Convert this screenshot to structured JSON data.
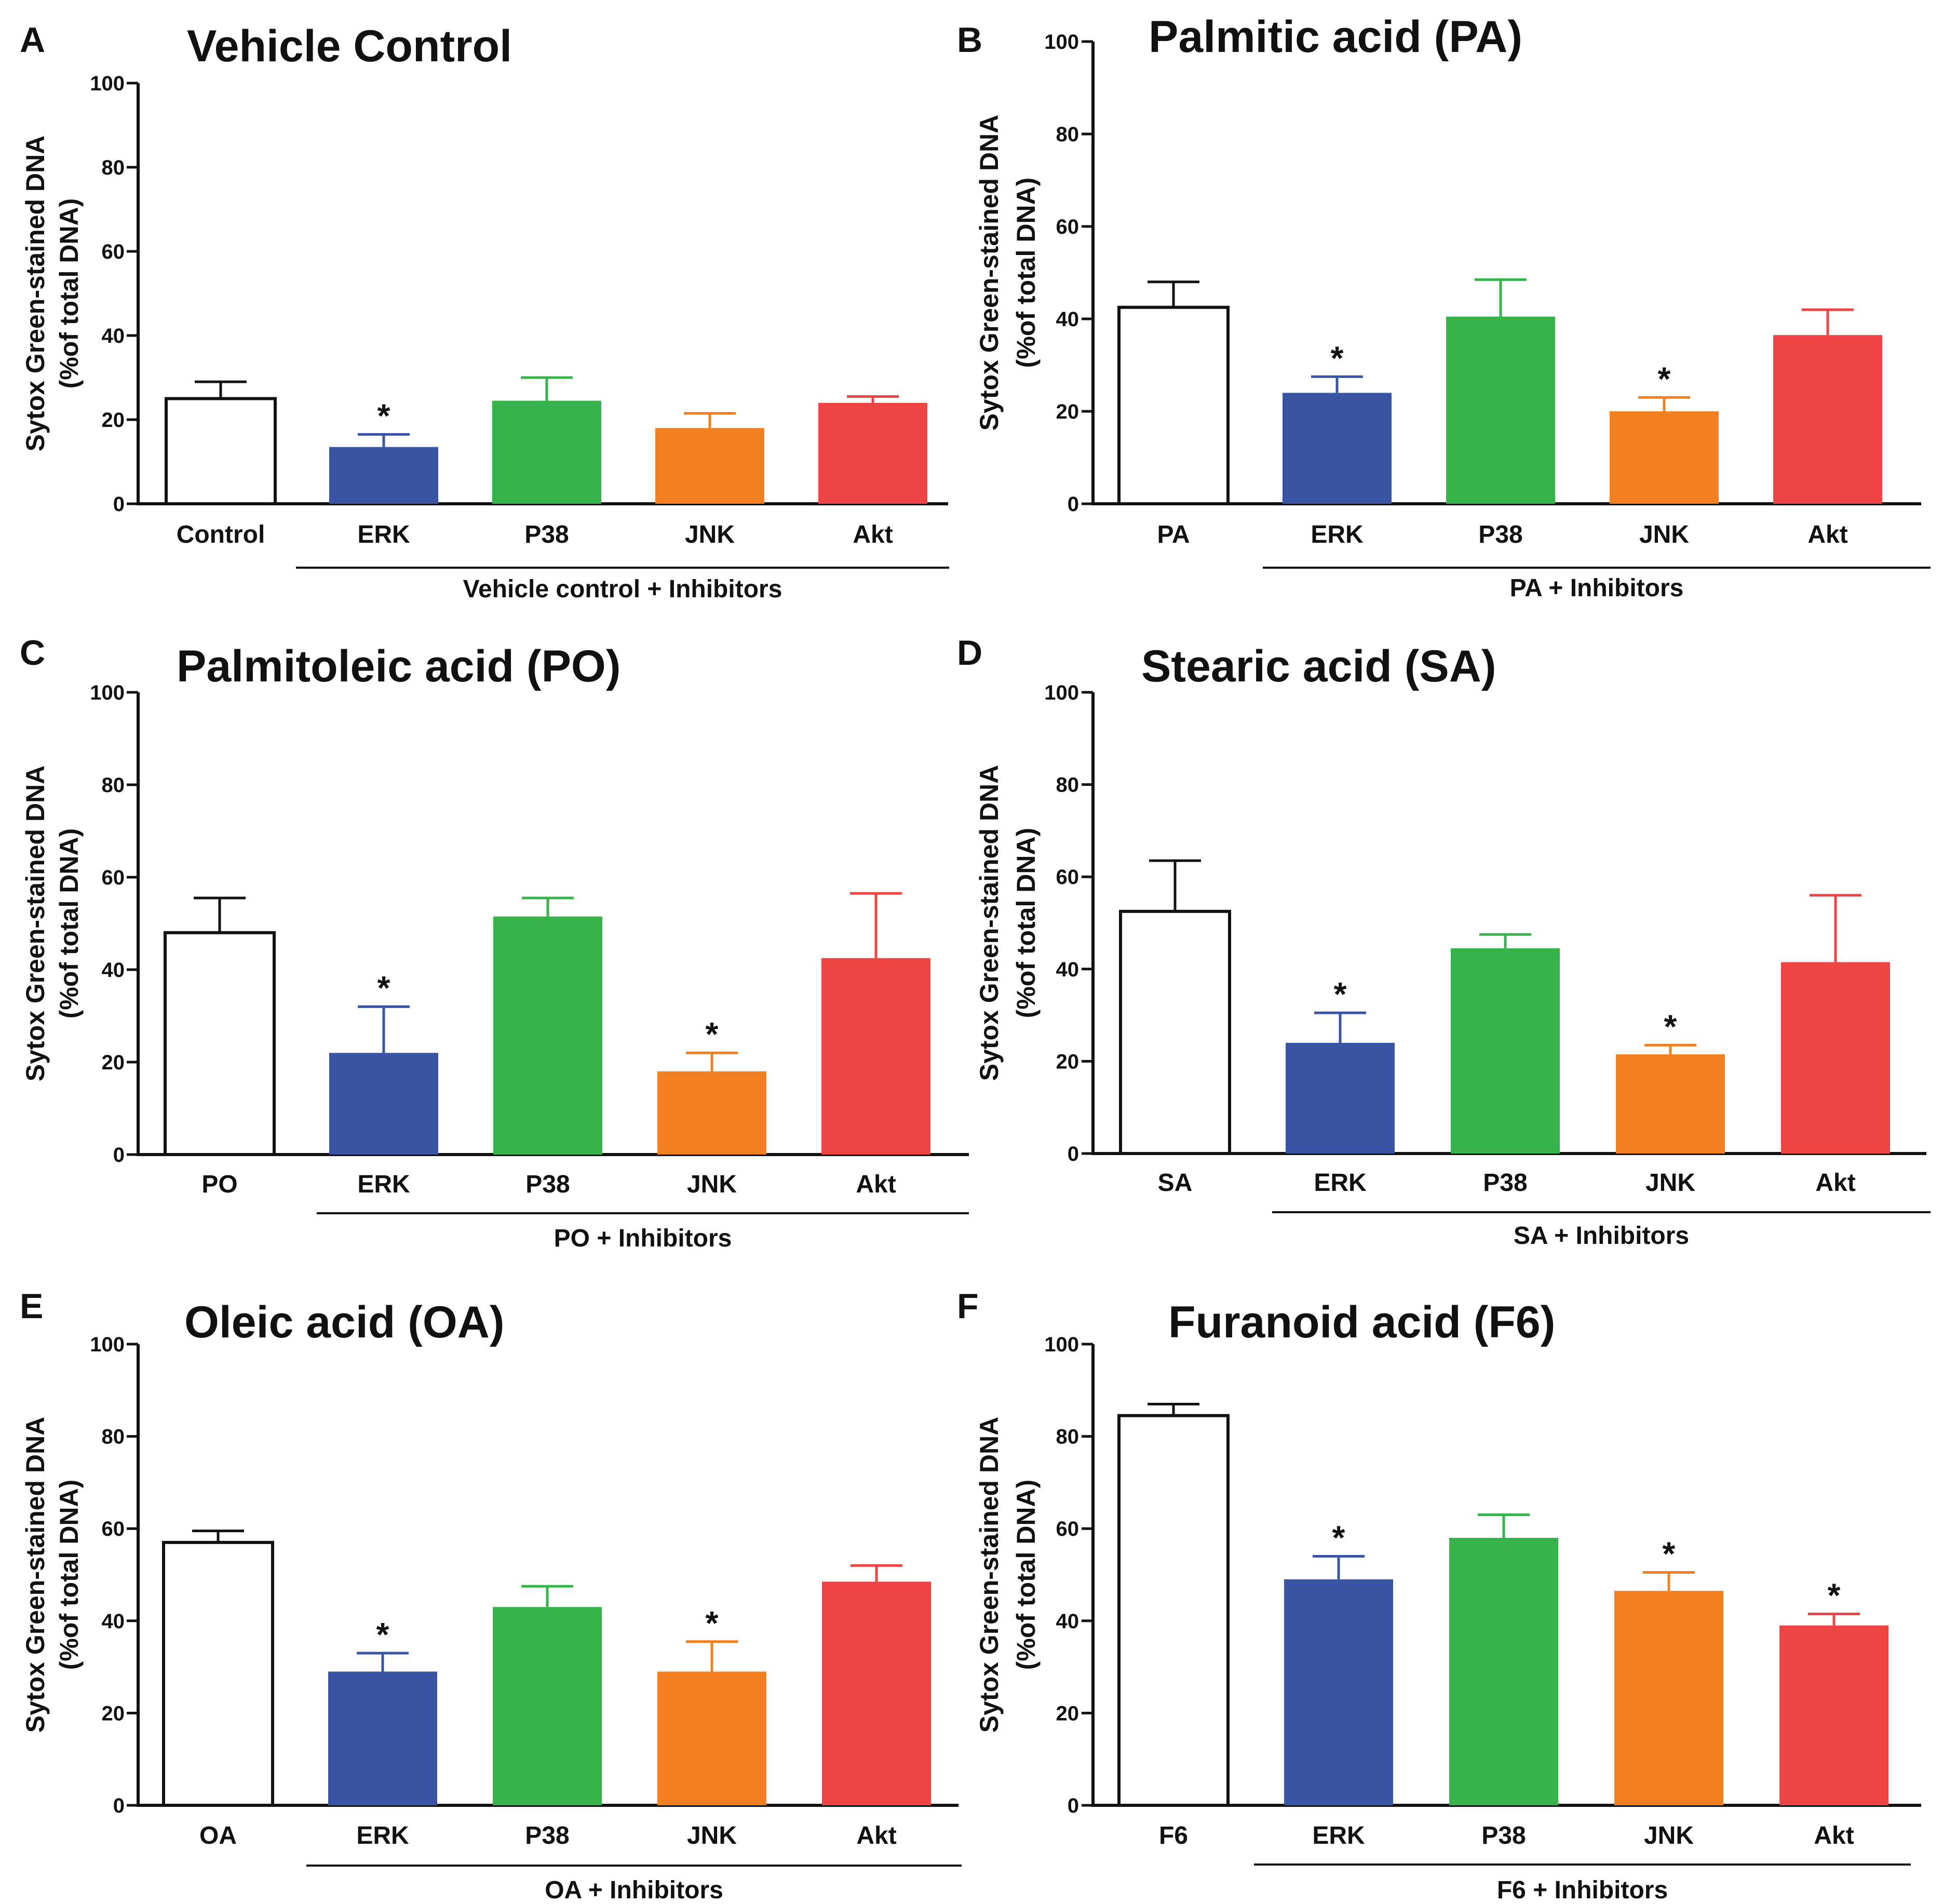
{
  "colors": {
    "control": "#ffffff",
    "ERK": "#3a54a4",
    "P38": "#36b34a",
    "JNK": "#f38020",
    "Akt": "#ef4444",
    "axis": "#111111"
  },
  "chart_data": [
    {
      "panel": "A",
      "type": "bar",
      "title": "Vehicle Control",
      "ylabel_line1": "Sytox Green-stained DNA",
      "ylabel_line2": "(%of total DNA)",
      "ylim": [
        0,
        100
      ],
      "yticks": [
        0,
        20,
        40,
        60,
        80,
        100
      ],
      "categories": [
        "Control",
        "ERK",
        "P38",
        "JNK",
        "Akt"
      ],
      "values": [
        25,
        13.5,
        24.5,
        18,
        24
      ],
      "errors": [
        4,
        3,
        5.5,
        3.5,
        1.5
      ],
      "significant": [
        false,
        true,
        false,
        false,
        false
      ],
      "group_label": "Vehicle control + Inhibitors",
      "sig_symbol": "*"
    },
    {
      "panel": "B",
      "type": "bar",
      "title": "Palmitic acid (PA)",
      "ylabel_line1": "Sytox Green-stained DNA",
      "ylabel_line2": "(%of total DNA)",
      "ylim": [
        0,
        100
      ],
      "yticks": [
        0,
        20,
        40,
        60,
        80,
        100
      ],
      "categories": [
        "PA",
        "ERK",
        "P38",
        "JNK",
        "Akt"
      ],
      "values": [
        42.5,
        24,
        40.5,
        20,
        36.5
      ],
      "errors": [
        5.5,
        3.5,
        8,
        3,
        5.5
      ],
      "significant": [
        false,
        true,
        false,
        true,
        false
      ],
      "group_label": "PA + Inhibitors",
      "sig_symbol": "*"
    },
    {
      "panel": "C",
      "type": "bar",
      "title": "Palmitoleic acid (PO)",
      "ylabel_line1": "Sytox Green-stained DNA",
      "ylabel_line2": "(%of total DNA)",
      "ylim": [
        0,
        100
      ],
      "yticks": [
        0,
        20,
        40,
        60,
        80,
        100
      ],
      "categories": [
        "PO",
        "ERK",
        "P38",
        "JNK",
        "Akt"
      ],
      "values": [
        48,
        22,
        51.5,
        18,
        42.5
      ],
      "errors": [
        7.5,
        10,
        4,
        4,
        14
      ],
      "significant": [
        false,
        true,
        false,
        true,
        false
      ],
      "group_label": "PO + Inhibitors",
      "sig_symbol": "*"
    },
    {
      "panel": "D",
      "type": "bar",
      "title": "Stearic acid (SA)",
      "ylabel_line1": "Sytox Green-stained DNA",
      "ylabel_line2": "(%of total DNA)",
      "ylim": [
        0,
        100
      ],
      "yticks": [
        0,
        20,
        40,
        60,
        80,
        100
      ],
      "categories": [
        "SA",
        "ERK",
        "P38",
        "JNK",
        "Akt"
      ],
      "values": [
        52.5,
        24,
        44.5,
        21.5,
        41.5
      ],
      "errors": [
        11,
        6.5,
        3,
        2,
        14.5
      ],
      "significant": [
        false,
        true,
        false,
        true,
        false
      ],
      "group_label": "SA + Inhibitors",
      "sig_symbol": "*"
    },
    {
      "panel": "E",
      "type": "bar",
      "title": "Oleic acid (OA)",
      "ylabel_line1": "Sytox Green-stained DNA",
      "ylabel_line2": "(%of total DNA)",
      "ylim": [
        0,
        100
      ],
      "yticks": [
        0,
        20,
        40,
        60,
        80,
        100
      ],
      "categories": [
        "OA",
        "ERK",
        "P38",
        "JNK",
        "Akt"
      ],
      "values": [
        57,
        29,
        43,
        29,
        48.5
      ],
      "errors": [
        2.5,
        4,
        4.5,
        6.5,
        3.5
      ],
      "significant": [
        false,
        true,
        false,
        true,
        false
      ],
      "group_label": "OA + Inhibitors",
      "sig_symbol": "*"
    },
    {
      "panel": "F",
      "type": "bar",
      "title": "Furanoid acid (F6)",
      "ylabel_line1": "Sytox Green-stained DNA",
      "ylabel_line2": "(%of total DNA)",
      "ylim": [
        0,
        100
      ],
      "yticks": [
        0,
        20,
        40,
        60,
        80,
        100
      ],
      "categories": [
        "F6",
        "ERK",
        "P38",
        "JNK",
        "Akt"
      ],
      "values": [
        84.5,
        49,
        58,
        46.5,
        39
      ],
      "errors": [
        2.5,
        5,
        5,
        4,
        2.5
      ],
      "significant": [
        false,
        true,
        false,
        true,
        true
      ],
      "group_label": "F6 + Inhibitors",
      "sig_symbol": "*"
    }
  ]
}
